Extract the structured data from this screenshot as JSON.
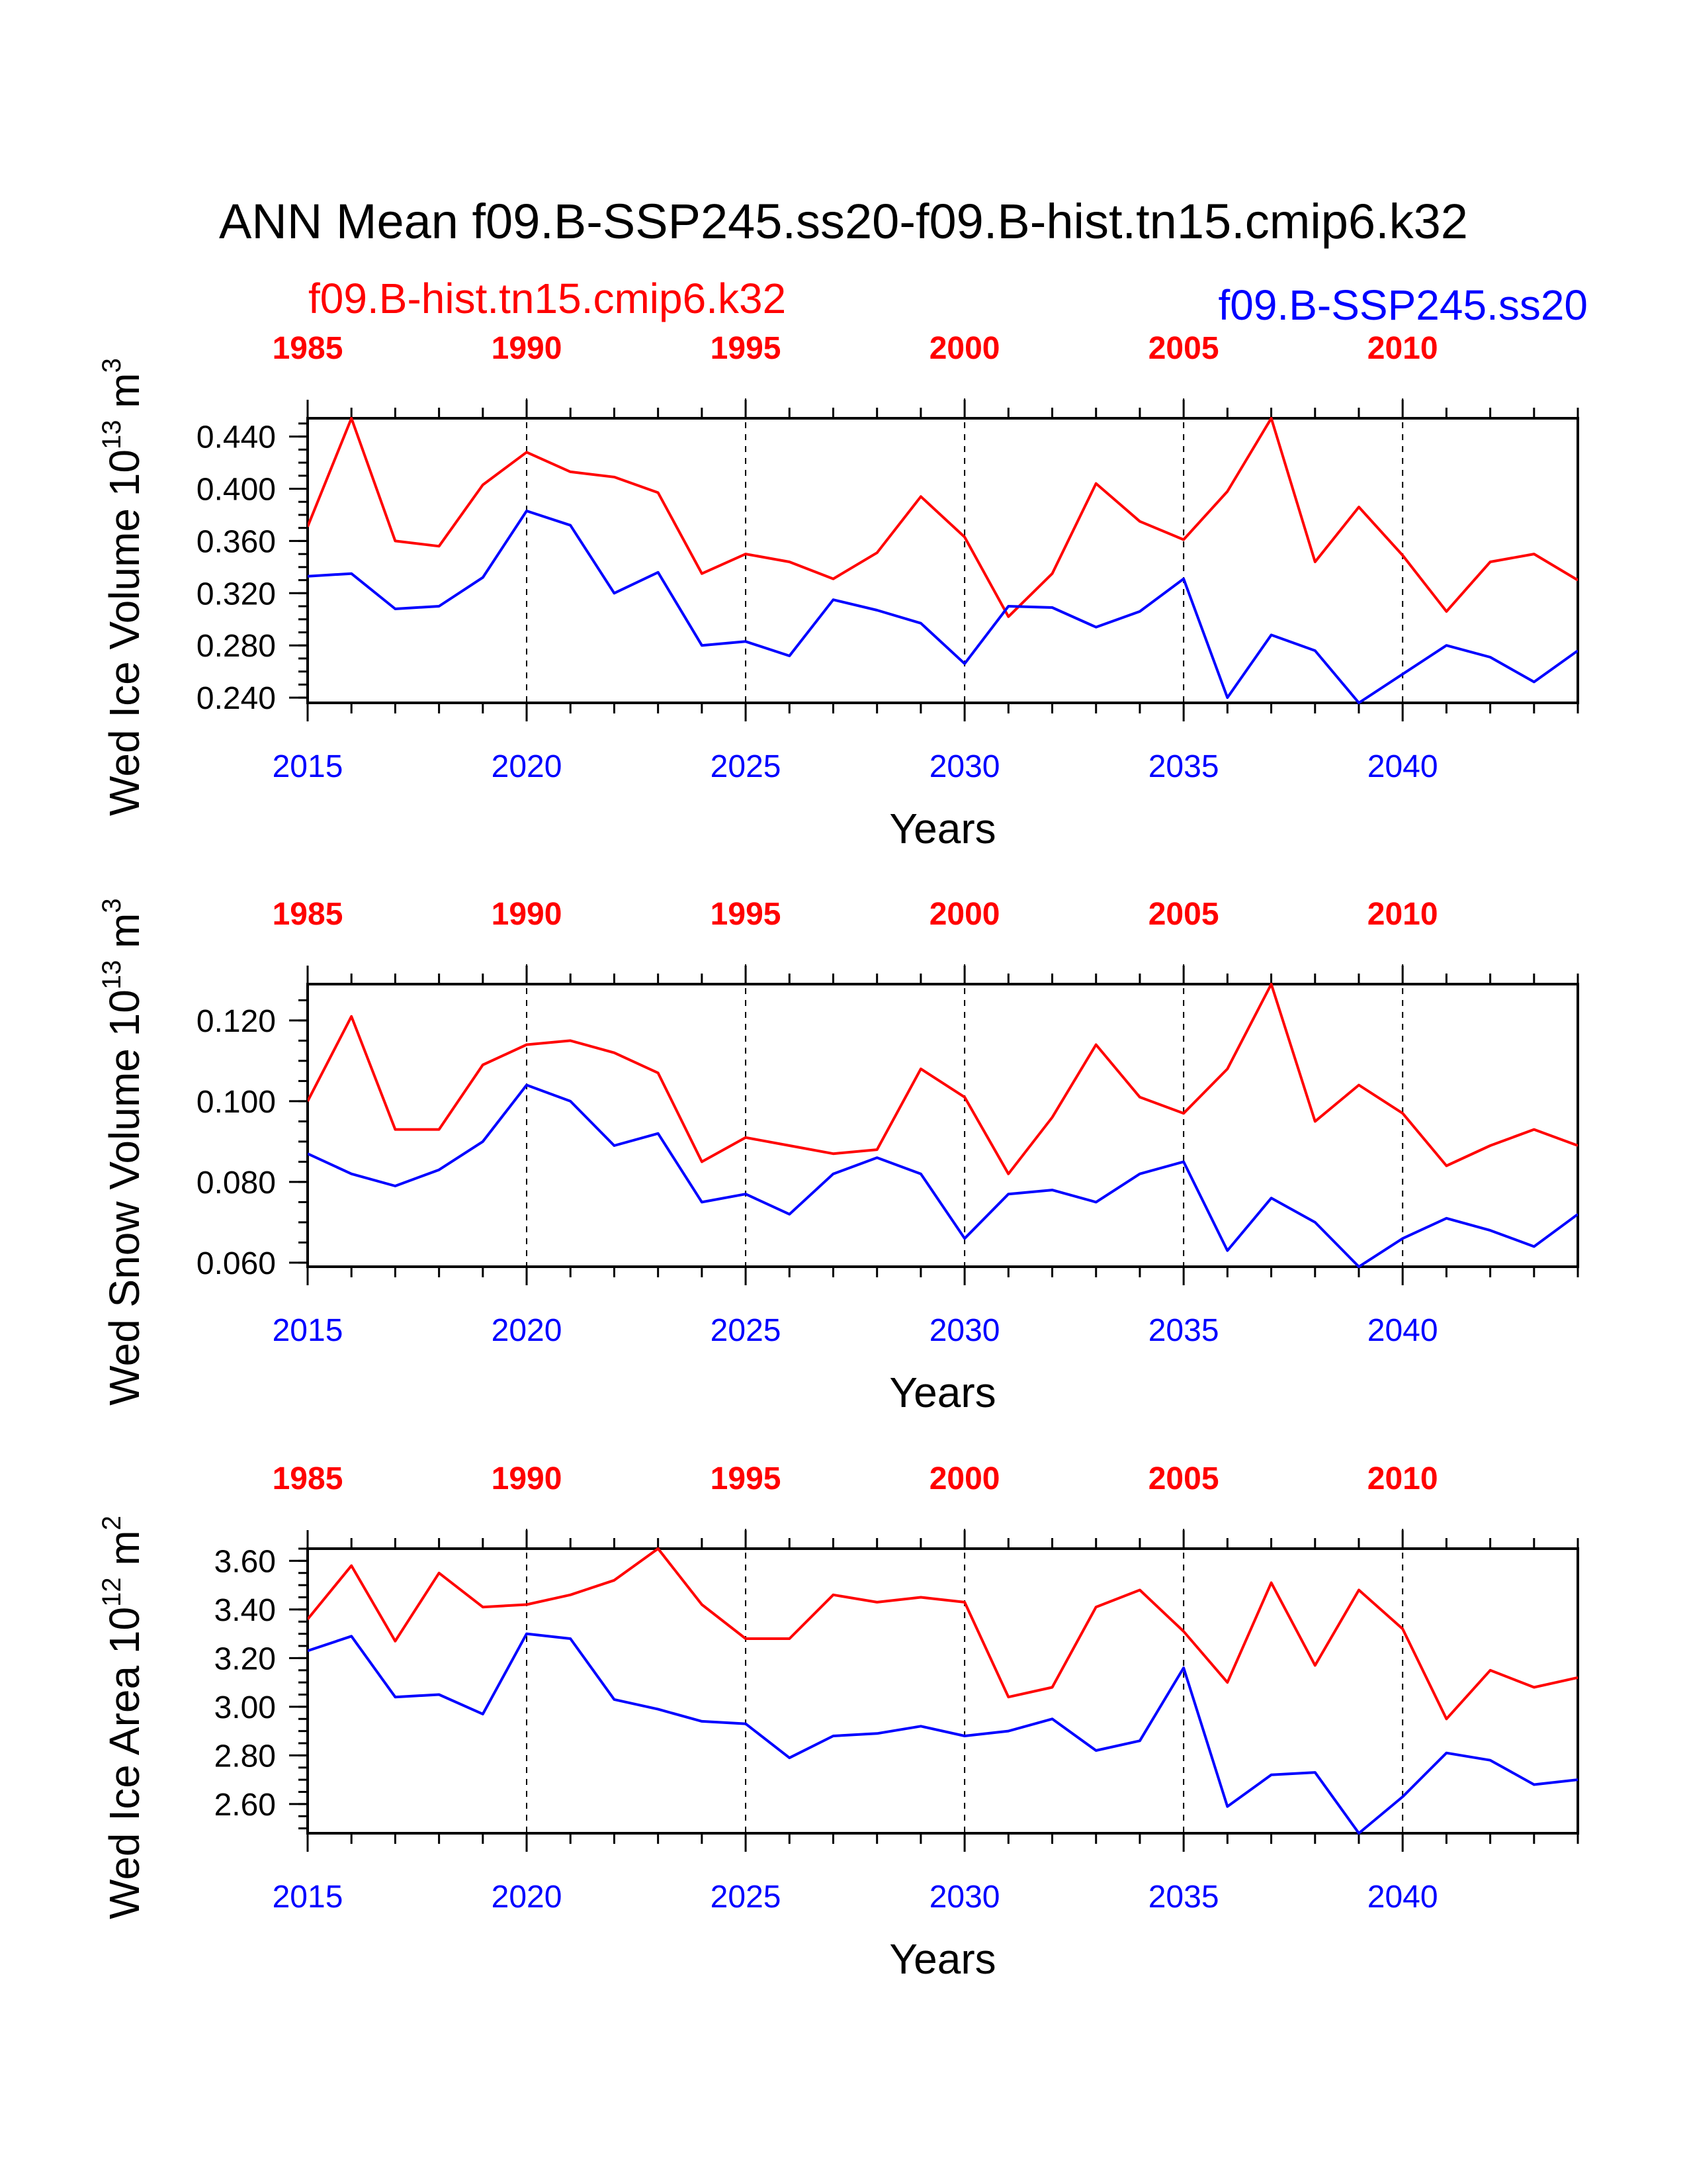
{
  "title": "ANN Mean f09.B-SSP245.ss20-f09.B-hist.tn15.cmip6.k32",
  "legend": {
    "red_label": "f09.B-hist.tn15.cmip6.k32",
    "blue_label": "f09.B-SSP245.ss20"
  },
  "colors": {
    "red": "#ff0000",
    "blue": "#0000ff",
    "axis": "#000000"
  },
  "x_bottom_ticks": [
    "2015",
    "2020",
    "2025",
    "2030",
    "2035",
    "2040"
  ],
  "x_top_ticks": [
    "1985",
    "1990",
    "1995",
    "2000",
    "2005",
    "2010"
  ],
  "chart_data": [
    {
      "type": "line",
      "ylabel": {
        "main": "Wed Ice Volume 10",
        "sup": "13",
        "unit": " m",
        "unit_sup": "3"
      },
      "xlabel": "Years",
      "ylim": [
        0.236,
        0.454
      ],
      "yticks": [
        "0.240",
        "0.280",
        "0.320",
        "0.360",
        "0.400",
        "0.440"
      ],
      "x_bottom": [
        2015,
        2044
      ],
      "x_top": [
        1985,
        2014
      ],
      "series": [
        {
          "name": "f09.B-hist.tn15.cmip6.k32",
          "color": "red",
          "values": [
            0.371,
            0.454,
            0.36,
            0.356,
            0.403,
            0.428,
            0.413,
            0.409,
            0.397,
            0.335,
            0.35,
            0.344,
            0.331,
            0.351,
            0.394,
            0.363,
            0.302,
            0.335,
            0.404,
            0.375,
            0.361,
            0.398,
            0.454,
            0.344,
            0.386,
            0.349,
            0.306,
            0.344,
            0.35,
            0.33
          ]
        },
        {
          "name": "f09.B-SSP245.ss20",
          "color": "blue",
          "values": [
            0.333,
            0.335,
            0.308,
            0.31,
            0.332,
            0.383,
            0.372,
            0.32,
            0.336,
            0.28,
            0.283,
            0.272,
            0.315,
            0.307,
            0.297,
            0.266,
            0.31,
            0.309,
            0.294,
            0.306,
            0.331,
            0.24,
            0.288,
            0.276,
            0.236,
            0.258,
            0.28,
            0.271,
            0.252,
            0.276
          ]
        }
      ]
    },
    {
      "type": "line",
      "ylabel": {
        "main": "Wed Snow Volume 10",
        "sup": "13",
        "unit": " m",
        "unit_sup": "3"
      },
      "xlabel": "Years",
      "ylim": [
        0.059,
        0.129
      ],
      "yticks": [
        "0.060",
        "0.080",
        "0.100",
        "0.120"
      ],
      "x_bottom": [
        2015,
        2044
      ],
      "x_top": [
        1985,
        2014
      ],
      "series": [
        {
          "name": "f09.B-hist.tn15.cmip6.k32",
          "color": "red",
          "values": [
            0.1,
            0.121,
            0.093,
            0.093,
            0.109,
            0.114,
            0.115,
            0.112,
            0.107,
            0.085,
            0.091,
            0.089,
            0.087,
            0.088,
            0.108,
            0.101,
            0.082,
            0.096,
            0.114,
            0.101,
            0.097,
            0.108,
            0.129,
            0.095,
            0.104,
            0.097,
            0.084,
            0.089,
            0.093,
            0.089
          ]
        },
        {
          "name": "f09.B-SSP245.ss20",
          "color": "blue",
          "values": [
            0.087,
            0.082,
            0.079,
            0.083,
            0.09,
            0.104,
            0.1,
            0.089,
            0.092,
            0.075,
            0.077,
            0.072,
            0.082,
            0.086,
            0.082,
            0.066,
            0.077,
            0.078,
            0.075,
            0.082,
            0.085,
            0.063,
            0.076,
            0.07,
            0.059,
            0.066,
            0.071,
            0.068,
            0.064,
            0.072
          ]
        }
      ]
    },
    {
      "type": "line",
      "ylabel": {
        "main": "Wed Ice Area 10",
        "sup": "12",
        "unit": " m",
        "unit_sup": "2"
      },
      "xlabel": "Years",
      "ylim": [
        2.48,
        3.65
      ],
      "yticks": [
        "2.60",
        "2.80",
        "3.00",
        "3.20",
        "3.40",
        "3.60"
      ],
      "x_bottom": [
        2015,
        2044
      ],
      "x_top": [
        1985,
        2014
      ],
      "series": [
        {
          "name": "f09.B-hist.tn15.cmip6.k32",
          "color": "red",
          "values": [
            3.36,
            3.58,
            3.27,
            3.55,
            3.41,
            3.42,
            3.46,
            3.52,
            3.65,
            3.42,
            3.28,
            3.28,
            3.46,
            3.43,
            3.45,
            3.43,
            3.04,
            3.08,
            3.41,
            3.48,
            3.31,
            3.1,
            3.51,
            3.17,
            3.48,
            3.32,
            2.95,
            3.15,
            3.08,
            3.12
          ]
        },
        {
          "name": "f09.B-SSP245.ss20",
          "color": "blue",
          "values": [
            3.23,
            3.29,
            3.04,
            3.05,
            2.97,
            3.3,
            3.28,
            3.03,
            2.99,
            2.94,
            2.93,
            2.79,
            2.88,
            2.89,
            2.92,
            2.88,
            2.9,
            2.95,
            2.82,
            2.86,
            3.16,
            2.59,
            2.72,
            2.73,
            2.48,
            2.63,
            2.81,
            2.78,
            2.68,
            2.7
          ]
        }
      ]
    }
  ]
}
